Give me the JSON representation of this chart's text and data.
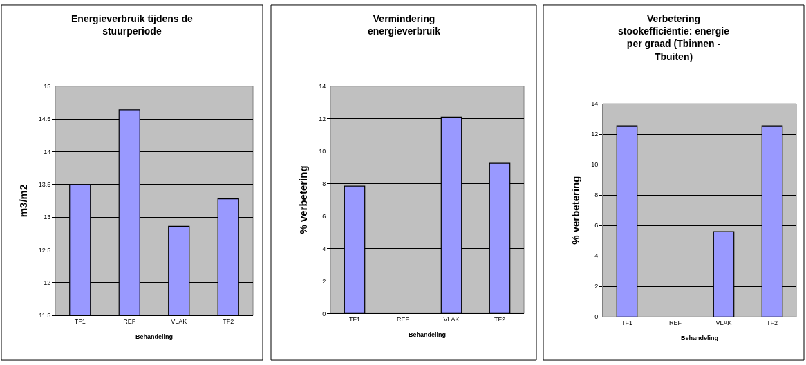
{
  "chart_data": [
    {
      "type": "bar",
      "title": "Energieverbruik tijdens de stuurperiode",
      "xlabel": "Behandeling",
      "ylabel": "m3/m2",
      "categories": [
        "TF1",
        "REF",
        "VLAK",
        "TF2"
      ],
      "values": [
        13.5,
        14.64,
        12.86,
        13.28
      ],
      "color": "#9999ff",
      "ylim": [
        11.5,
        15
      ],
      "yticks": [
        11.5,
        12,
        12.5,
        13,
        13.5,
        14,
        14.5,
        15
      ],
      "grid": "y",
      "legend": false
    },
    {
      "type": "bar",
      "title": "Vermindering energieverbruik",
      "xlabel": "Behandeling",
      "ylabel": "% verbetering",
      "categories": [
        "TF1",
        "REF",
        "VLAK",
        "TF2"
      ],
      "values": [
        7.85,
        null,
        12.1,
        9.25
      ],
      "color": "#9999ff",
      "ylim": [
        0,
        14
      ],
      "yticks": [
        0,
        2,
        4,
        6,
        8,
        10,
        12,
        14
      ],
      "grid": "y",
      "legend": false
    },
    {
      "type": "bar",
      "title": "Verbetering stookefficiëntie: energie per graad (Tbinnen - Tbuiten)",
      "xlabel": "Behandeling",
      "ylabel": "% verbetering",
      "categories": [
        "TF1",
        "REF",
        "VLAK",
        "TF2"
      ],
      "values": [
        12.55,
        null,
        5.6,
        12.55
      ],
      "color": "#9999ff",
      "ylim": [
        0,
        14
      ],
      "yticks": [
        0,
        2,
        4,
        6,
        8,
        10,
        12,
        14
      ],
      "grid": "y",
      "legend": false
    }
  ]
}
